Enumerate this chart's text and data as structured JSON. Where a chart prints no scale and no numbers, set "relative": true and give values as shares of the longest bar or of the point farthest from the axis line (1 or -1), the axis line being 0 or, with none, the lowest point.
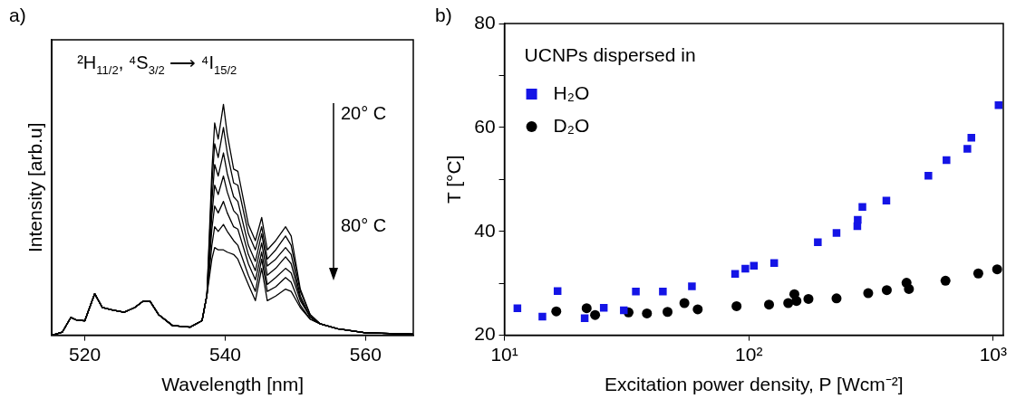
{
  "chart_data": [
    {
      "type": "line",
      "title": "a)",
      "xlabel": "Wavelength [nm]",
      "ylabel": "Intensity [arb.u]",
      "relative": true,
      "xlim": [
        515.3,
        566.8
      ],
      "xticks": [
        520,
        540,
        560
      ],
      "legend": false,
      "grid": false,
      "marker": "none",
      "line_style": "solid",
      "annotations": [
        "²H$_{11/2}$, ⁴S$_{3/2}$ ⟶ ⁴I$_{15/2}$",
        "20° C",
        "80° C"
      ],
      "x": [
        515.3,
        516.8,
        518.0,
        518.8,
        520.0,
        521.4,
        522.5,
        523.9,
        525.6,
        527.1,
        528.3,
        529.3,
        530.5,
        532.5,
        535.0,
        536.7,
        537.4,
        538.1,
        538.5,
        539.0,
        539.75,
        540.3,
        541.2,
        541.8,
        543.3,
        544.3,
        545.2,
        546.0,
        547.2,
        548.6,
        549.4,
        550.7,
        552.1,
        553.5,
        556.0,
        560.0,
        566.8
      ],
      "series": [
        {
          "color": "#000000",
          "values": [
            0,
            0.014,
            0.077,
            0.066,
            0.063,
            0.18,
            0.12,
            0.11,
            0.1,
            0.12,
            0.147,
            0.147,
            0.09,
            0.042,
            0.035,
            0.063,
            0.175,
            0.71,
            0.92,
            0.85,
            1.0,
            0.87,
            0.72,
            0.71,
            0.48,
            0.41,
            0.51,
            0.37,
            0.41,
            0.47,
            0.43,
            0.2,
            0.09,
            0.05,
            0.028,
            0.011,
            0.005
          ]
        },
        {
          "color": "#000000",
          "values": [
            0,
            0.014,
            0.077,
            0.066,
            0.063,
            0.18,
            0.12,
            0.11,
            0.1,
            0.12,
            0.147,
            0.147,
            0.09,
            0.042,
            0.035,
            0.063,
            0.175,
            0.65,
            0.83,
            0.77,
            0.9,
            0.79,
            0.66,
            0.65,
            0.44,
            0.37,
            0.47,
            0.33,
            0.37,
            0.43,
            0.39,
            0.19,
            0.09,
            0.05,
            0.028,
            0.011,
            0.005
          ]
        },
        {
          "color": "#000000",
          "values": [
            0,
            0.014,
            0.077,
            0.066,
            0.063,
            0.18,
            0.12,
            0.11,
            0.1,
            0.12,
            0.147,
            0.147,
            0.09,
            0.042,
            0.035,
            0.063,
            0.175,
            0.58,
            0.74,
            0.69,
            0.79,
            0.7,
            0.6,
            0.58,
            0.39,
            0.32,
            0.44,
            0.3,
            0.33,
            0.38,
            0.35,
            0.17,
            0.08,
            0.05,
            0.028,
            0.011,
            0.005
          ]
        },
        {
          "color": "#000000",
          "values": [
            0,
            0.014,
            0.077,
            0.066,
            0.063,
            0.18,
            0.12,
            0.11,
            0.1,
            0.12,
            0.147,
            0.147,
            0.09,
            0.042,
            0.035,
            0.063,
            0.175,
            0.52,
            0.65,
            0.61,
            0.69,
            0.62,
            0.54,
            0.52,
            0.35,
            0.28,
            0.4,
            0.26,
            0.29,
            0.34,
            0.31,
            0.16,
            0.08,
            0.05,
            0.028,
            0.011,
            0.005
          ]
        },
        {
          "color": "#000000",
          "values": [
            0,
            0.014,
            0.077,
            0.066,
            0.063,
            0.18,
            0.12,
            0.11,
            0.1,
            0.12,
            0.147,
            0.147,
            0.09,
            0.042,
            0.035,
            0.063,
            0.175,
            0.46,
            0.56,
            0.53,
            0.58,
            0.53,
            0.47,
            0.46,
            0.31,
            0.24,
            0.36,
            0.22,
            0.25,
            0.29,
            0.27,
            0.15,
            0.08,
            0.05,
            0.028,
            0.011,
            0.005
          ]
        },
        {
          "color": "#000000",
          "values": [
            0,
            0.014,
            0.077,
            0.066,
            0.063,
            0.18,
            0.12,
            0.11,
            0.1,
            0.12,
            0.147,
            0.147,
            0.09,
            0.042,
            0.035,
            0.063,
            0.175,
            0.39,
            0.47,
            0.45,
            0.48,
            0.45,
            0.41,
            0.39,
            0.26,
            0.19,
            0.33,
            0.19,
            0.21,
            0.25,
            0.23,
            0.13,
            0.07,
            0.05,
            0.028,
            0.011,
            0.005
          ]
        },
        {
          "color": "#000000",
          "values": [
            0,
            0.014,
            0.077,
            0.066,
            0.063,
            0.18,
            0.12,
            0.11,
            0.1,
            0.12,
            0.147,
            0.147,
            0.09,
            0.042,
            0.035,
            0.063,
            0.175,
            0.33,
            0.38,
            0.37,
            0.37,
            0.36,
            0.35,
            0.33,
            0.22,
            0.15,
            0.29,
            0.15,
            0.17,
            0.2,
            0.19,
            0.12,
            0.07,
            0.05,
            0.028,
            0.011,
            0.005
          ]
        }
      ]
    },
    {
      "type": "scatter",
      "title": "b)",
      "xlabel": "Excitation power density, P [Wcm⁻²]",
      "ylabel": "T [°C]",
      "log": "x",
      "xlim": [
        10,
        1100
      ],
      "xticks": [
        {
          "value": 10,
          "label": "10¹"
        },
        {
          "value": 100,
          "label": "10²"
        },
        {
          "value": 1000,
          "label": "10³"
        }
      ],
      "ylim": [
        20,
        80
      ],
      "yticks": [
        20,
        {
          "value": 30,
          "label": null
        },
        40,
        {
          "value": 50,
          "label": null
        },
        60,
        {
          "value": 70,
          "label": null
        },
        80
      ],
      "grid": false,
      "legend": "top left",
      "legend_title": "UCNPs dispersed in",
      "series": [
        {
          "name": "H₂O",
          "color": "#1414e6",
          "marker": "square",
          "x": [
            11.3,
            14.3,
            16.5,
            21.3,
            25.5,
            30.8,
            34.5,
            44.5,
            58.5,
            87.9,
            96.8,
            104.9,
            127,
            191.6,
            228.5,
            278,
            279,
            291.6,
            365.5,
            543,
            644,
            784,
            814,
            1052
          ],
          "values": [
            25.2,
            23.6,
            28.5,
            23.3,
            25.3,
            24.8,
            28.4,
            28.4,
            29.4,
            31.8,
            32.8,
            33.4,
            33.9,
            37.9,
            39.7,
            41.0,
            42.2,
            44.7,
            45.9,
            50.7,
            53.7,
            55.9,
            58.0,
            64.3
          ]
        },
        {
          "name": "D₂O",
          "color": "#000000",
          "marker": "circle",
          "x": [
            16.3,
            21.7,
            23.5,
            32.2,
            38.3,
            46.5,
            54.5,
            61.8,
            89.1,
            121,
            145,
            153.6,
            156.7,
            175.4,
            228.5,
            308,
            367,
            442,
            452,
            638,
            869,
            1038
          ],
          "values": [
            24.6,
            25.2,
            23.9,
            24.4,
            24.2,
            24.5,
            26.2,
            25.0,
            25.6,
            25.9,
            26.2,
            27.9,
            26.6,
            27.0,
            27.1,
            28.1,
            28.7,
            30.1,
            28.9,
            30.5,
            31.9,
            32.7
          ]
        }
      ]
    }
  ]
}
